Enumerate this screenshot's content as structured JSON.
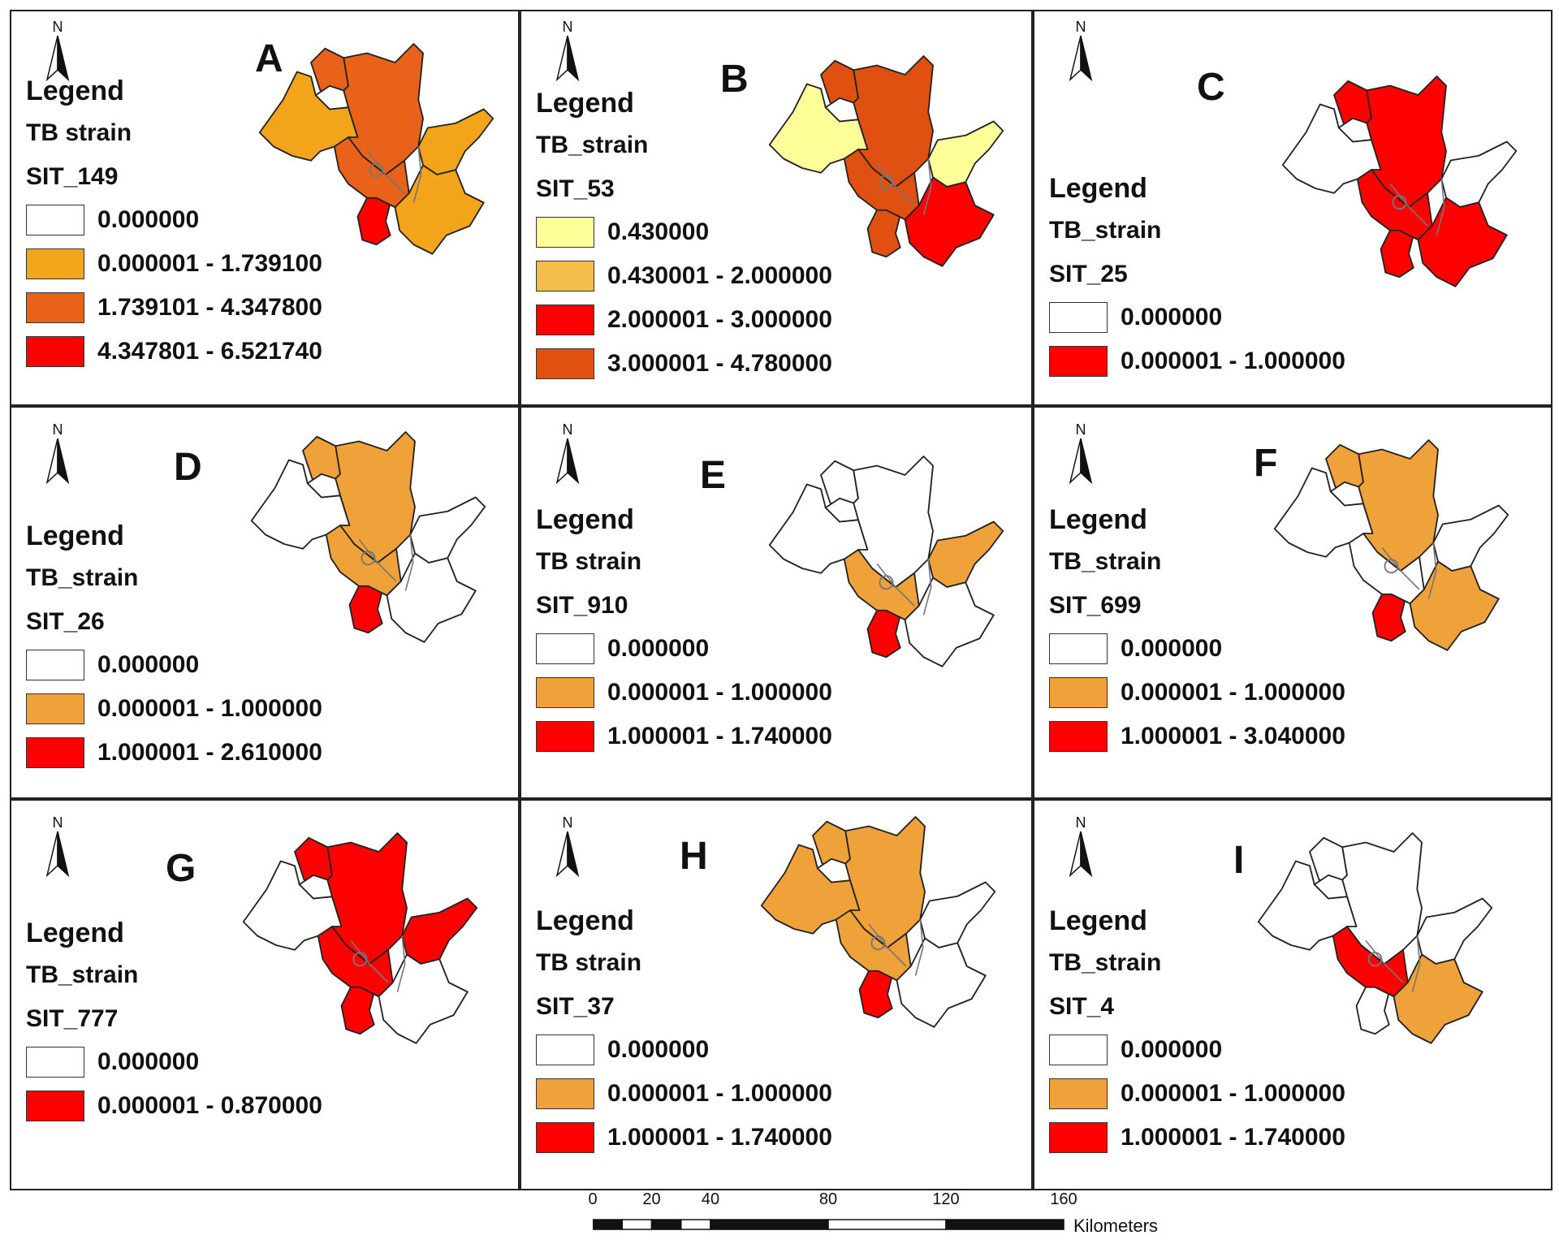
{
  "colors": {
    "white": "#ffffff",
    "orange_light": "#f0a23a",
    "orange_a": "#f2a41a",
    "orange_dark": "#e8621a",
    "red": "#ff0000",
    "yellow_pale": "#ffff99",
    "orange_soft": "#f4be4a",
    "orange_burnt": "#e05010",
    "outline": "#222222",
    "inner_line": "#777777"
  },
  "north_label": "N",
  "panels": [
    {
      "id": "A",
      "legend": "Legend",
      "field": "TB strain",
      "strain": "SIT_149",
      "fills": [
        "orange_a",
        "orange_dark",
        "orange_dark",
        "white",
        "orange_a",
        "red",
        "orange_dark",
        "orange_a"
      ],
      "entries": [
        {
          "color": "white",
          "label": "0.000000"
        },
        {
          "color": "orange_a",
          "label": "0.000001 - 1.739100"
        },
        {
          "color": "orange_dark",
          "label": "1.739101 - 4.347800"
        },
        {
          "color": "red",
          "label": "4.347801 - 6.521740"
        }
      ]
    },
    {
      "id": "B",
      "legend": "Legend",
      "field": "TB_strain",
      "strain": "SIT_53",
      "fills": [
        "yellow_pale",
        "orange_burnt",
        "orange_burnt",
        "white",
        "yellow_pale",
        "orange_burnt",
        "orange_burnt",
        "red"
      ],
      "entries": [
        {
          "color": "yellow_pale",
          "label": "0.430000"
        },
        {
          "color": "orange_soft",
          "label": "0.430001 - 2.000000"
        },
        {
          "color": "red",
          "label": "2.000001 - 3.000000"
        },
        {
          "color": "orange_burnt",
          "label": "3.000001 - 4.780000"
        }
      ]
    },
    {
      "id": "C",
      "legend": "Legend",
      "field": "TB_strain",
      "strain": "SIT_25",
      "fills": [
        "white",
        "red",
        "red",
        "white",
        "white",
        "red",
        "red",
        "red"
      ],
      "entries": [
        {
          "color": "white",
          "label": "0.000000"
        },
        {
          "color": "red",
          "label": "0.000001 - 1.000000"
        }
      ]
    },
    {
      "id": "D",
      "legend": "Legend",
      "field": "TB_strain",
      "strain": "SIT_26",
      "fills": [
        "white",
        "orange_light",
        "orange_light",
        "white",
        "white",
        "red",
        "orange_light",
        "white"
      ],
      "entries": [
        {
          "color": "white",
          "label": "0.000000"
        },
        {
          "color": "orange_light",
          "label": "0.000001 - 1.000000"
        },
        {
          "color": "red",
          "label": "1.000001 - 2.610000"
        }
      ]
    },
    {
      "id": "E",
      "legend": "Legend",
      "field": "TB strain",
      "strain": "SIT_910",
      "fills": [
        "white",
        "white",
        "white",
        "white",
        "orange_light",
        "red",
        "orange_light",
        "white"
      ],
      "entries": [
        {
          "color": "white",
          "label": "0.000000"
        },
        {
          "color": "orange_light",
          "label": "0.000001 - 1.000000"
        },
        {
          "color": "red",
          "label": "1.000001 - 1.740000"
        }
      ]
    },
    {
      "id": "F",
      "legend": "Legend",
      "field": "TB_strain",
      "strain": "SIT_699",
      "fills": [
        "white",
        "orange_light",
        "orange_light",
        "white",
        "white",
        "red",
        "white",
        "orange_light"
      ],
      "entries": [
        {
          "color": "white",
          "label": "0.000000"
        },
        {
          "color": "orange_light",
          "label": "0.000001 - 1.000000"
        },
        {
          "color": "red",
          "label": "1.000001 - 3.040000"
        }
      ]
    },
    {
      "id": "G",
      "legend": "Legend",
      "field": "TB_strain",
      "strain": "SIT_777",
      "fills": [
        "white",
        "red",
        "red",
        "white",
        "red",
        "red",
        "red",
        "white"
      ],
      "entries": [
        {
          "color": "white",
          "label": "0.000000"
        },
        {
          "color": "red",
          "label": "0.000001 - 0.870000"
        }
      ]
    },
    {
      "id": "H",
      "legend": "Legend",
      "field": "TB strain",
      "strain": "SIT_37",
      "fills": [
        "orange_light",
        "orange_light",
        "orange_light",
        "white",
        "white",
        "red",
        "orange_light",
        "white"
      ],
      "entries": [
        {
          "color": "white",
          "label": "0.000000"
        },
        {
          "color": "orange_light",
          "label": "0.000001 - 1.000000"
        },
        {
          "color": "red",
          "label": "1.000001 - 1.740000"
        }
      ]
    },
    {
      "id": "I",
      "legend": "Legend",
      "field": "TB_strain",
      "strain": "SIT_4",
      "fills": [
        "white",
        "white",
        "white",
        "white",
        "white",
        "white",
        "red",
        "orange_light"
      ],
      "entries": [
        {
          "color": "white",
          "label": "0.000000"
        },
        {
          "color": "orange_light",
          "label": "0.000001 - 1.000000"
        },
        {
          "color": "red",
          "label": "1.000001 - 1.740000"
        }
      ]
    }
  ],
  "scale": {
    "ticks": [
      "0",
      "20",
      "40",
      "80",
      "120",
      "160"
    ],
    "tick_values": [
      0,
      20,
      40,
      80,
      120,
      160
    ],
    "unit": "Kilometers"
  }
}
